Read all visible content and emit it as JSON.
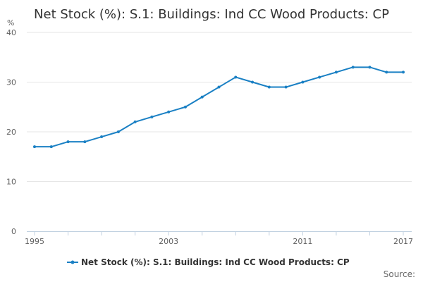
{
  "chart_data": {
    "type": "line",
    "title": "Net Stock (%): S.1: Buildings: Ind CC Wood Products: CP",
    "ylabel": "%",
    "ylim": [
      0,
      40
    ],
    "yticks": [
      0,
      10,
      20,
      30,
      40
    ],
    "xlim": [
      1995,
      2017
    ],
    "xtick_labels": [
      "1995",
      "2003",
      "2011",
      "2017"
    ],
    "grid": true,
    "legend_position": "bottom",
    "series": [
      {
        "name": "Net Stock (%): S.1: Buildings: Ind CC Wood Products: CP",
        "color": "#1a80c4",
        "x": [
          1995,
          1996,
          1997,
          1998,
          1999,
          2000,
          2001,
          2002,
          2003,
          2004,
          2005,
          2006,
          2007,
          2008,
          2009,
          2010,
          2011,
          2012,
          2013,
          2014,
          2015,
          2016,
          2017
        ],
        "values": [
          17,
          17,
          18,
          18,
          19,
          20,
          22,
          23,
          24,
          25,
          27,
          29,
          31,
          30,
          29,
          29,
          30,
          31,
          32,
          33,
          33,
          32,
          32
        ]
      }
    ]
  },
  "footer": {
    "source_label": "Source:"
  }
}
